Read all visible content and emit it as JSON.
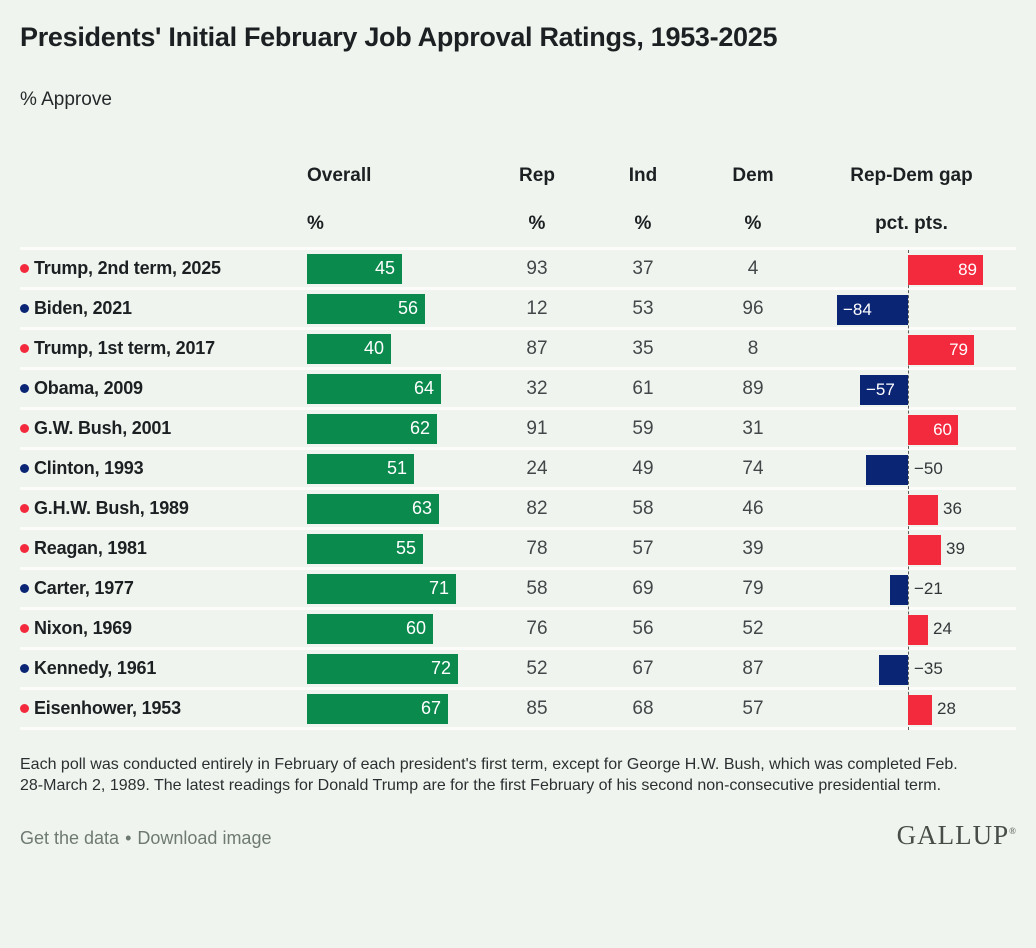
{
  "footnote": "Each poll was conducted entirely in February of each president's first term, except for George H.W. Bush, which was completed Feb. 28-March 2, 1989. The latest readings for Donald Trump are for the first February of his second non-consecutive presidential term.",
  "footer": {
    "get_the_data_label": "Get the data",
    "bullet": "•",
    "download_image_label": "Download image",
    "logo_text": "GALLUP",
    "logo_mark": "®"
  },
  "colors": {
    "background": "#eff5ee",
    "approval_green": "#0a8a4d",
    "republican_red": "#f3293d",
    "democrat_navy": "#0b2575",
    "row_separator": "#fcfdfb",
    "header_text": "#1d2023",
    "number_text": "#43474a",
    "footer_text": "#6f7973",
    "logo_color": "#484d49"
  },
  "chart_data": {
    "type": "bar",
    "title": "Presidents' Initial February Job Approval Ratings, 1953-2025",
    "subtitle": "% Approve",
    "columns": [
      {
        "label": "Overall",
        "unit": "%"
      },
      {
        "label": "Rep",
        "unit": "%"
      },
      {
        "label": "Ind",
        "unit": "%"
      },
      {
        "label": "Dem",
        "unit": "%"
      },
      {
        "label": "Rep-Dem gap",
        "unit": "pct. pts."
      }
    ],
    "bar_series": [
      {
        "name": "Overall approval",
        "color": "#0a8a4d",
        "direction": "horizontal"
      },
      {
        "name": "Rep-Dem gap",
        "positive_color": "#f3293d",
        "negative_color": "#0b2575",
        "zero_line": true
      }
    ],
    "rows": [
      {
        "president": "Trump, 2nd term, 2025",
        "party": "Republican",
        "overall": 45,
        "rep": 93,
        "ind": 37,
        "dem": 4,
        "gap": 89
      },
      {
        "president": "Biden, 2021",
        "party": "Democrat",
        "overall": 56,
        "rep": 12,
        "ind": 53,
        "dem": 96,
        "gap": -84
      },
      {
        "president": "Trump, 1st term, 2017",
        "party": "Republican",
        "overall": 40,
        "rep": 87,
        "ind": 35,
        "dem": 8,
        "gap": 79
      },
      {
        "president": "Obama, 2009",
        "party": "Democrat",
        "overall": 64,
        "rep": 32,
        "ind": 61,
        "dem": 89,
        "gap": -57
      },
      {
        "president": "G.W. Bush, 2001",
        "party": "Republican",
        "overall": 62,
        "rep": 91,
        "ind": 59,
        "dem": 31,
        "gap": 60
      },
      {
        "president": "Clinton, 1993",
        "party": "Democrat",
        "overall": 51,
        "rep": 24,
        "ind": 49,
        "dem": 74,
        "gap": -50
      },
      {
        "president": "G.H.W. Bush, 1989",
        "party": "Republican",
        "overall": 63,
        "rep": 82,
        "ind": 58,
        "dem": 46,
        "gap": 36
      },
      {
        "president": "Reagan, 1981",
        "party": "Republican",
        "overall": 55,
        "rep": 78,
        "ind": 57,
        "dem": 39,
        "gap": 39
      },
      {
        "president": "Carter, 1977",
        "party": "Democrat",
        "overall": 71,
        "rep": 58,
        "ind": 69,
        "dem": 79,
        "gap": -21
      },
      {
        "president": "Nixon, 1969",
        "party": "Republican",
        "overall": 60,
        "rep": 76,
        "ind": 56,
        "dem": 52,
        "gap": 24
      },
      {
        "president": "Kennedy, 1961",
        "party": "Democrat",
        "overall": 72,
        "rep": 52,
        "ind": 67,
        "dem": 87,
        "gap": -35
      },
      {
        "president": "Eisenhower, 1953",
        "party": "Republican",
        "overall": 67,
        "rep": 85,
        "ind": 68,
        "dem": 57,
        "gap": 28
      }
    ]
  }
}
